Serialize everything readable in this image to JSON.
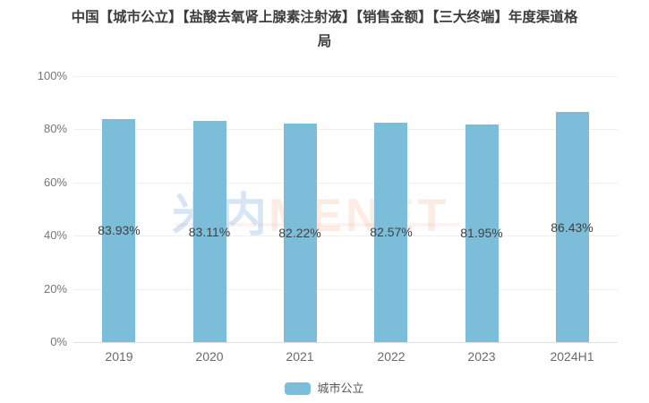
{
  "title": {
    "line1": "中国【城市公立】【盐酸去氧肾上腺素注射液】【销售金额】【三大终端】年度渠道格",
    "line2": "局"
  },
  "watermark": {
    "cn": "米内",
    "en": "MENET"
  },
  "legend": {
    "items": [
      {
        "label": "城市公立",
        "color": "#7cbeda"
      }
    ]
  },
  "colors": {
    "bar": "#7cbeda",
    "gridline": "#efefef",
    "axis_line": "#e0e0e0",
    "title_text": "#3d3d3d",
    "value_label": "#3f3f3f",
    "tick_label": "#6a6a6a"
  },
  "chart_data": {
    "type": "bar",
    "title": "中国【城市公立】【盐酸去氧肾上腺素注射液】【销售金额】【三大终端】年度渠道格局",
    "categories": [
      "2019",
      "2020",
      "2021",
      "2022",
      "2023",
      "2024H1"
    ],
    "series": [
      {
        "name": "城市公立",
        "color": "#7cbeda",
        "values": [
          83.93,
          83.11,
          82.22,
          82.57,
          81.95,
          86.43
        ],
        "labels": [
          "83.93%",
          "83.11%",
          "82.22%",
          "82.57%",
          "81.95%",
          "86.43%"
        ]
      }
    ],
    "xlabel": "",
    "ylabel": "",
    "ylim": [
      0,
      100
    ],
    "y_ticks": [
      "0%",
      "20%",
      "40%",
      "60%",
      "80%",
      "100%"
    ],
    "grid": true,
    "legend_position": "bottom",
    "value_label_position": "inside-center"
  }
}
